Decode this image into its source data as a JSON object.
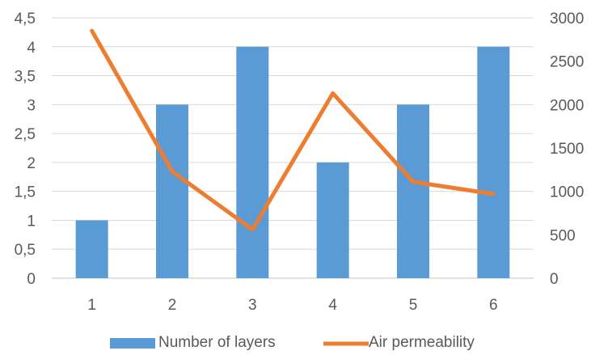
{
  "chart_data": {
    "type": "bar",
    "categories": [
      "1",
      "2",
      "3",
      "4",
      "5",
      "6"
    ],
    "series": [
      {
        "name": "Number of layers",
        "type": "bar",
        "axis": "left",
        "color": "#5b9bd5",
        "values": [
          1,
          3,
          4,
          2,
          3,
          4
        ]
      },
      {
        "name": "Air permeability",
        "type": "line",
        "axis": "right",
        "color": "#ed7d31",
        "values": [
          2850,
          1230,
          560,
          2130,
          1110,
          970
        ]
      }
    ],
    "left_axis": {
      "ylim": [
        0,
        4.5
      ],
      "ticks": [
        "0",
        "0,5",
        "1",
        "1,5",
        "2",
        "2,5",
        "3",
        "3,5",
        "4",
        "4,5"
      ]
    },
    "right_axis": {
      "ylim": [
        0,
        3000
      ],
      "ticks": [
        "0",
        "500",
        "1000",
        "1500",
        "2000",
        "2500",
        "3000"
      ]
    },
    "title": "",
    "xlabel": "",
    "ylabel": "",
    "grid": true,
    "legend": "bottom"
  }
}
